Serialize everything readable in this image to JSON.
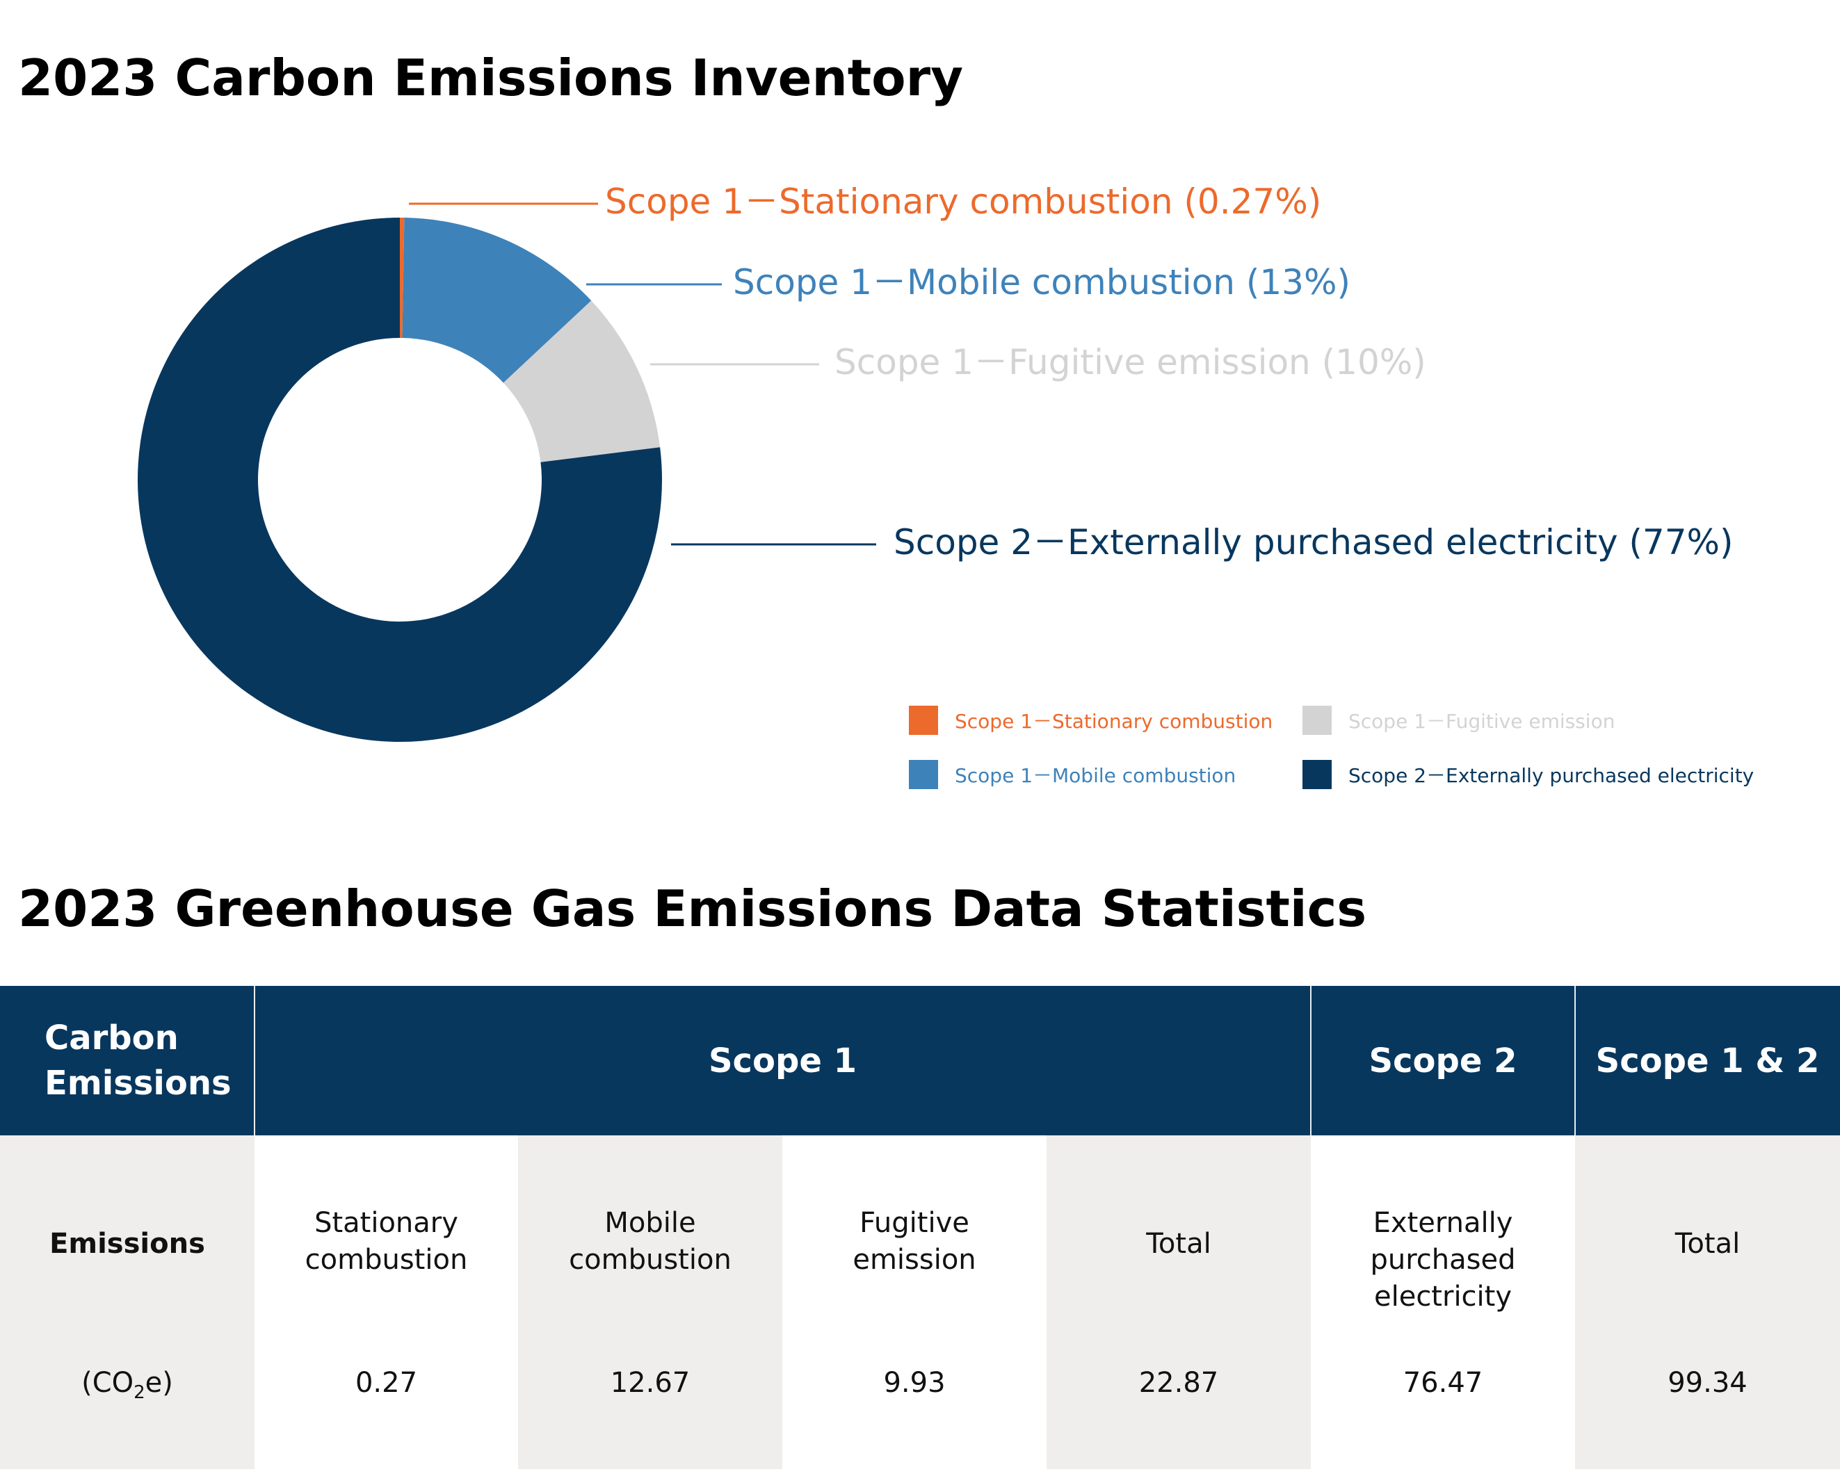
{
  "titles": {
    "inventory": "2023 Carbon Emissions Inventory",
    "statistics": "2023 Greenhouse Gas Emissions Data Statistics"
  },
  "chart_data": {
    "type": "pie",
    "title": "2023 Carbon Emissions Inventory",
    "donut": true,
    "categories": [
      "Scope 1－Stationary combustion",
      "Scope 1－Mobile combustion",
      "Scope 1－Fugitive emission",
      "Scope 2－Externally purchased electricity"
    ],
    "values": [
      0.27,
      12.67,
      9.93,
      76.47
    ],
    "slice_labels": [
      "Scope 1－Stationary combustion (0.27%)",
      "Scope 1－Mobile combustion (13%)",
      "Scope 1－Fugitive emission (10%)",
      "Scope 2－Externally purchased electricity (77%)"
    ],
    "colors": [
      "#ec6a2c",
      "#3e82ba",
      "#d3d3d3",
      "#08375e"
    ],
    "legend_position": "bottom-right"
  },
  "table": {
    "headers": {
      "first": "Carbon Emissions",
      "scope1": "Scope 1",
      "scope2": "Scope 2",
      "scope12": "Scope 1 & 2"
    },
    "row_label": "Emissions",
    "unit_prefix": "(CO",
    "unit_sub": "2",
    "unit_suffix": "e)",
    "columns": [
      {
        "label": "Stationary combustion",
        "value": "0.27"
      },
      {
        "label": "Mobile combustion",
        "value": "12.67"
      },
      {
        "label": "Fugitive emission",
        "value": "9.93"
      },
      {
        "label": "Total",
        "value": "22.87"
      },
      {
        "label": "Externally purchased electricity",
        "value": "76.47"
      },
      {
        "label": "Total",
        "value": "99.34"
      }
    ]
  }
}
